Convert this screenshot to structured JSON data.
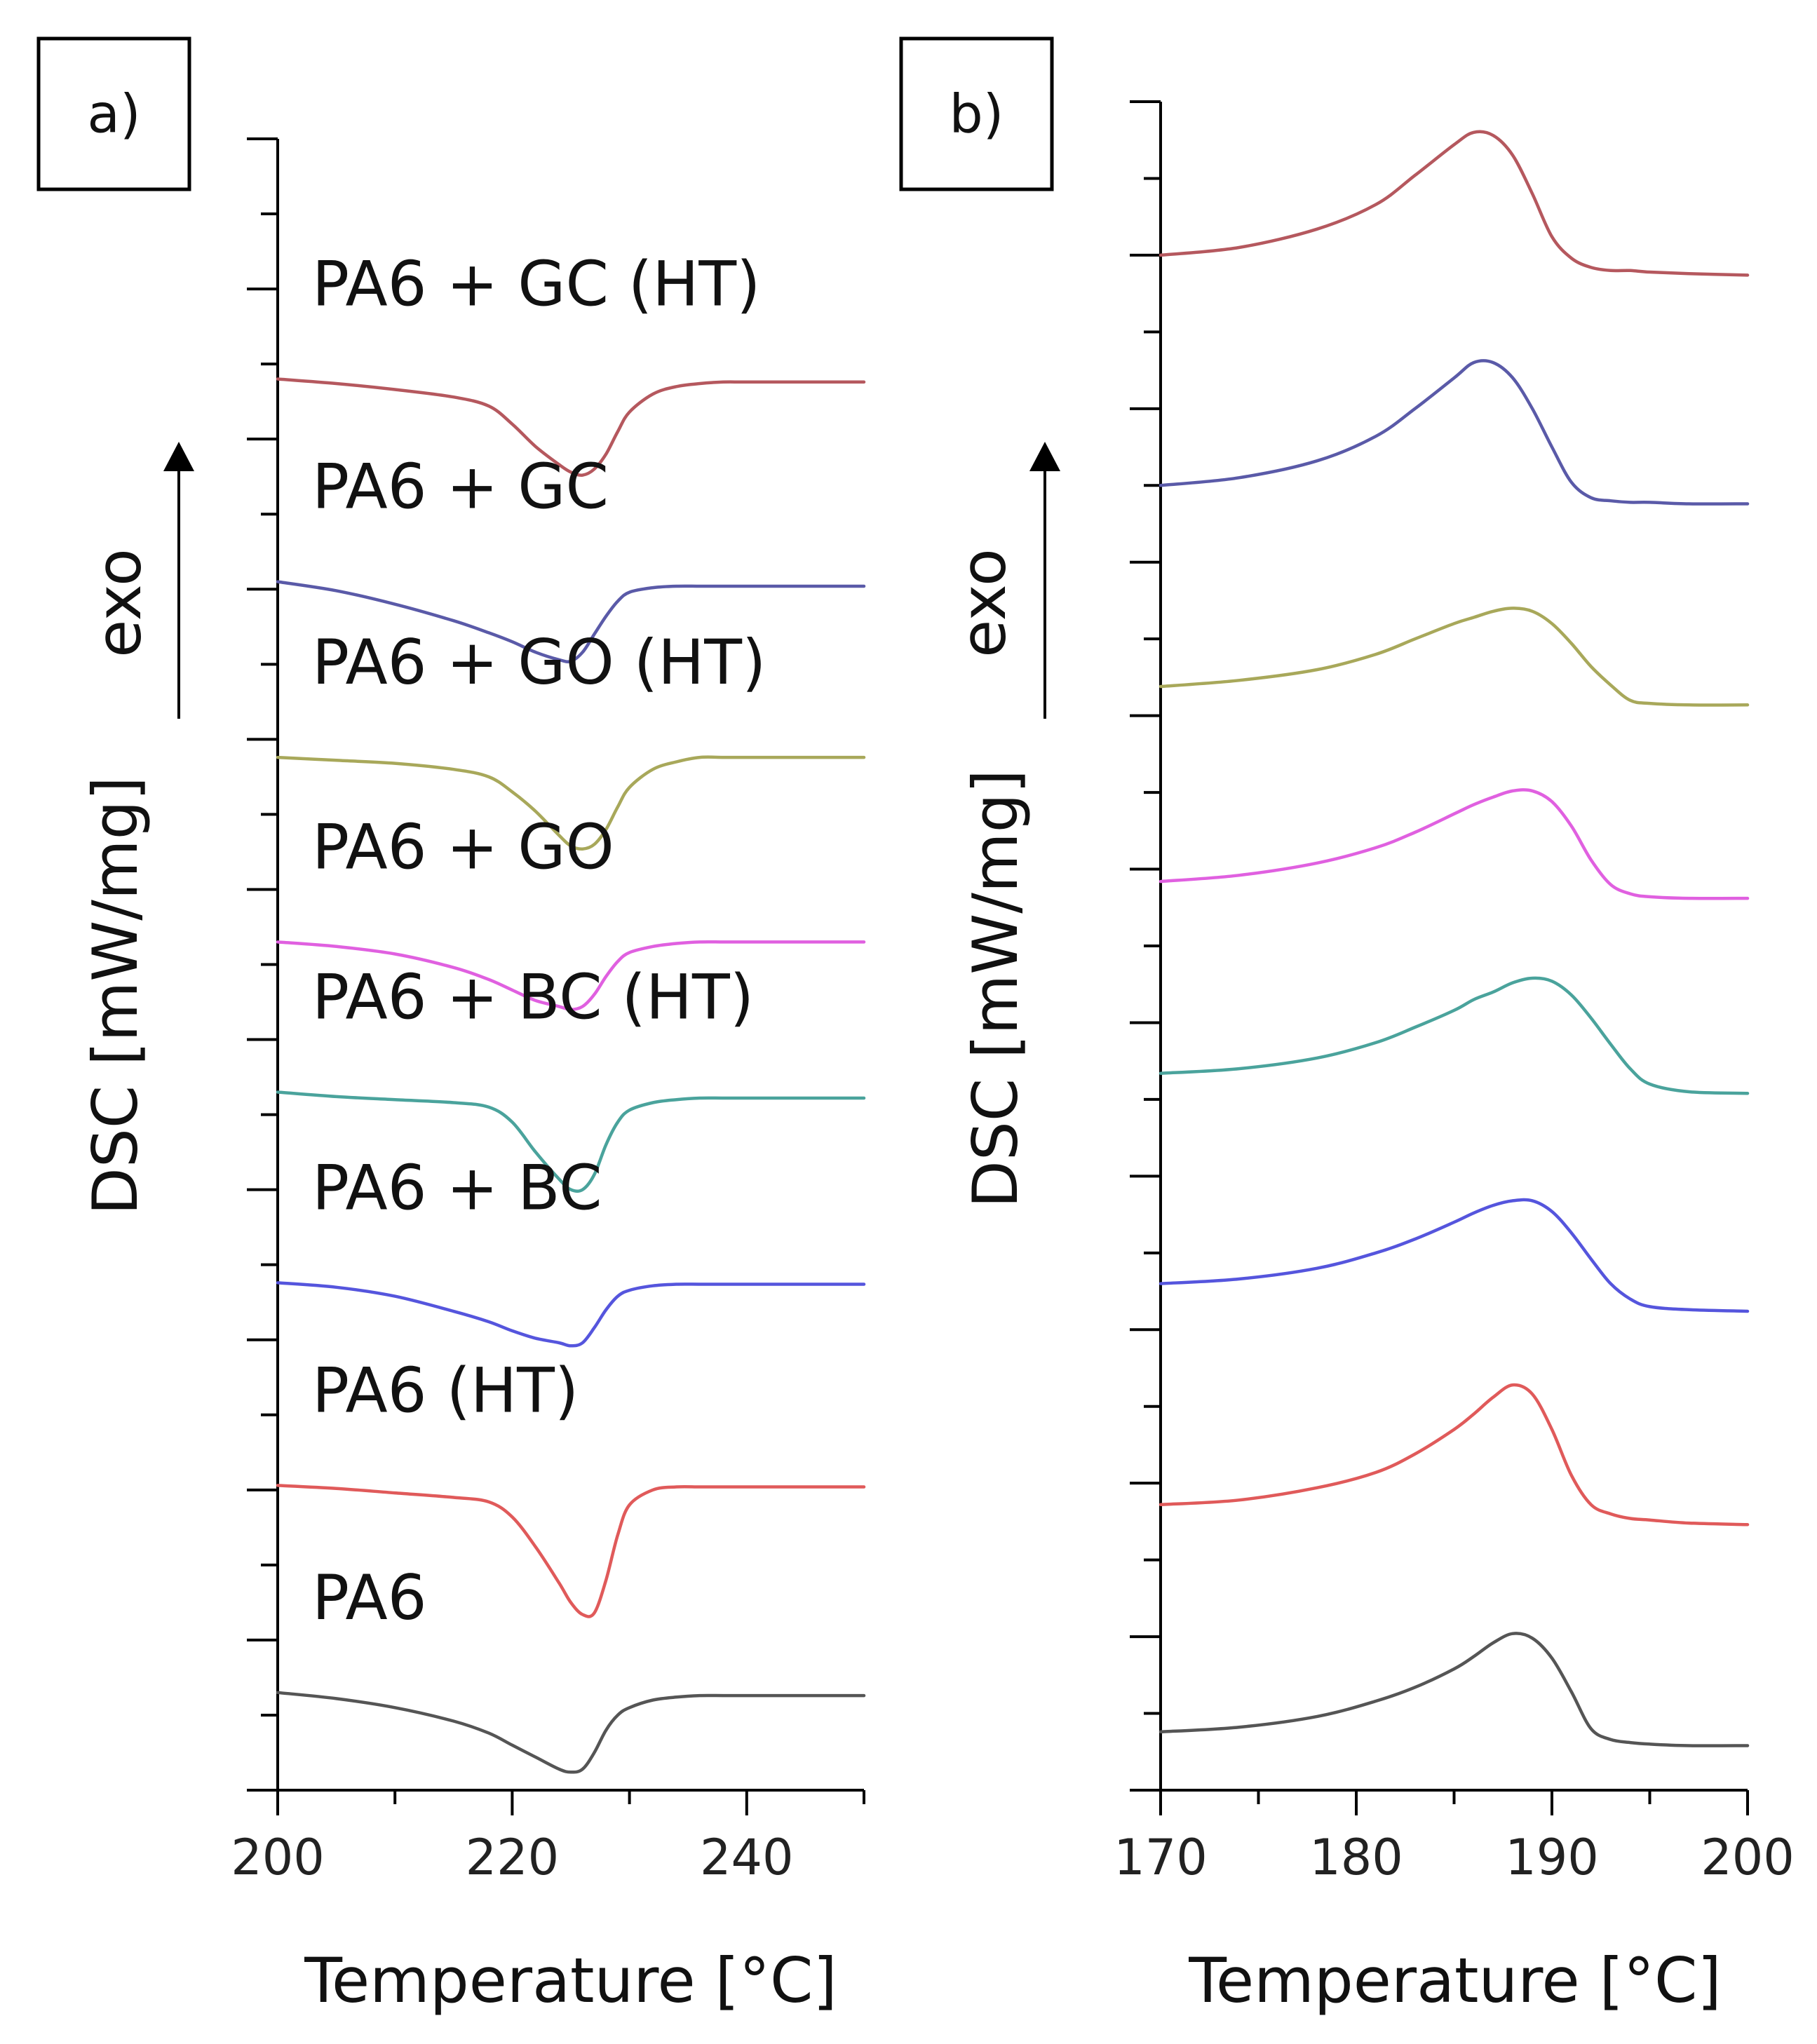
{
  "chart_data": [
    {
      "panel": "a)",
      "type": "line",
      "xlabel": "Temperature [°C]",
      "ylabel": "DSC [mW/mg]",
      "arrow_label": "exo",
      "xlim": [
        200,
        250
      ],
      "ylim": [
        0,
        11
      ],
      "xticks": [
        200,
        220,
        240
      ],
      "x": [
        200,
        205,
        210,
        215,
        218,
        220,
        222,
        224,
        225,
        226,
        227,
        228,
        229,
        230,
        232,
        234,
        236,
        238,
        240,
        245,
        250
      ],
      "series": [
        {
          "name": "PA6 + GC (HT)",
          "color": "#b5585e",
          "y": [
            9.4,
            9.37,
            9.33,
            9.28,
            9.22,
            9.1,
            8.95,
            8.83,
            8.78,
            8.76,
            8.8,
            8.9,
            9.05,
            9.18,
            9.3,
            9.35,
            9.37,
            9.38,
            9.38,
            9.38,
            9.38
          ]
        },
        {
          "name": "PA6 + GC",
          "color": "#5a5aa8",
          "y": [
            8.05,
            7.99,
            7.9,
            7.79,
            7.71,
            7.65,
            7.58,
            7.53,
            7.52,
            7.58,
            7.7,
            7.82,
            7.92,
            7.98,
            8.01,
            8.02,
            8.02,
            8.02,
            8.02,
            8.02,
            8.02
          ]
        },
        {
          "name": "PA6 + GO (HT)",
          "color": "#a8a85a",
          "y": [
            6.88,
            6.86,
            6.84,
            6.8,
            6.75,
            6.65,
            6.52,
            6.36,
            6.29,
            6.27,
            6.3,
            6.4,
            6.55,
            6.68,
            6.8,
            6.85,
            6.88,
            6.88,
            6.88,
            6.88,
            6.88
          ]
        },
        {
          "name": "PA6 + GO",
          "color": "#e060e0",
          "y": [
            5.65,
            5.62,
            5.57,
            5.48,
            5.4,
            5.33,
            5.26,
            5.22,
            5.2,
            5.22,
            5.3,
            5.42,
            5.52,
            5.58,
            5.62,
            5.64,
            5.65,
            5.65,
            5.65,
            5.65,
            5.65
          ]
        },
        {
          "name": "PA6 + BC (HT)",
          "color": "#4aa39c",
          "y": [
            4.65,
            4.62,
            4.6,
            4.58,
            4.55,
            4.45,
            4.25,
            4.07,
            4.0,
            4.0,
            4.1,
            4.3,
            4.45,
            4.53,
            4.58,
            4.6,
            4.61,
            4.61,
            4.61,
            4.61,
            4.61
          ]
        },
        {
          "name": "PA6 + BC",
          "color": "#5555dd",
          "y": [
            3.38,
            3.35,
            3.29,
            3.19,
            3.12,
            3.06,
            3.01,
            2.98,
            2.96,
            2.98,
            3.08,
            3.2,
            3.29,
            3.33,
            3.36,
            3.37,
            3.37,
            3.37,
            3.37,
            3.37,
            3.37
          ]
        },
        {
          "name": "PA6 (HT)",
          "color": "#e05a5a",
          "y": [
            2.03,
            2.01,
            1.98,
            1.95,
            1.92,
            1.82,
            1.62,
            1.38,
            1.25,
            1.17,
            1.18,
            1.4,
            1.7,
            1.9,
            2.0,
            2.02,
            2.02,
            2.02,
            2.02,
            2.02,
            2.02
          ]
        },
        {
          "name": "PA6",
          "color": "#555555",
          "y": [
            0.65,
            0.61,
            0.55,
            0.46,
            0.38,
            0.3,
            0.22,
            0.14,
            0.12,
            0.14,
            0.25,
            0.4,
            0.5,
            0.55,
            0.6,
            0.62,
            0.63,
            0.63,
            0.63,
            0.63,
            0.63
          ]
        }
      ]
    },
    {
      "panel": "b)",
      "type": "line",
      "xlabel": "Temperature [°C]",
      "ylabel": "DSC [mW/mg]",
      "arrow_label": "exo",
      "xlim": [
        170,
        200
      ],
      "ylim": [
        0,
        11
      ],
      "xticks": [
        170,
        180,
        190,
        200
      ],
      "x": [
        170,
        174,
        178,
        181,
        183,
        185,
        186,
        187,
        188,
        189,
        190,
        191,
        192,
        193,
        194,
        195,
        197,
        200
      ],
      "series": [
        {
          "name": "PA6 + GC (HT)",
          "color": "#b5585e",
          "y": [
            10.0,
            10.05,
            10.17,
            10.33,
            10.52,
            10.72,
            10.8,
            10.78,
            10.65,
            10.4,
            10.12,
            9.98,
            9.92,
            9.9,
            9.9,
            9.89,
            9.88,
            9.87
          ]
        },
        {
          "name": "PA6 + GC",
          "color": "#5a5aa8",
          "y": [
            8.5,
            8.55,
            8.66,
            8.82,
            9.0,
            9.2,
            9.3,
            9.3,
            9.2,
            9.0,
            8.75,
            8.52,
            8.42,
            8.4,
            8.39,
            8.39,
            8.38,
            8.38
          ]
        },
        {
          "name": "PA6 + GO (HT)",
          "color": "#a8a85a",
          "y": [
            7.19,
            7.23,
            7.3,
            7.4,
            7.5,
            7.6,
            7.64,
            7.68,
            7.7,
            7.68,
            7.6,
            7.47,
            7.32,
            7.2,
            7.1,
            7.08,
            7.07,
            7.07
          ]
        },
        {
          "name": "PA6 + GO",
          "color": "#e060e0",
          "y": [
            5.92,
            5.96,
            6.04,
            6.14,
            6.24,
            6.36,
            6.42,
            6.47,
            6.51,
            6.51,
            6.44,
            6.28,
            6.06,
            5.9,
            5.84,
            5.82,
            5.81,
            5.81
          ]
        },
        {
          "name": "PA6 + BC (HT)",
          "color": "#4aa39c",
          "y": [
            4.67,
            4.7,
            4.77,
            4.87,
            4.97,
            5.08,
            5.15,
            5.2,
            5.26,
            5.29,
            5.27,
            5.18,
            5.03,
            4.86,
            4.7,
            4.6,
            4.55,
            4.54
          ]
        },
        {
          "name": "PA6 + BC",
          "color": "#5555dd",
          "y": [
            3.3,
            3.33,
            3.4,
            3.5,
            3.59,
            3.7,
            3.76,
            3.81,
            3.84,
            3.84,
            3.77,
            3.63,
            3.46,
            3.3,
            3.2,
            3.15,
            3.13,
            3.12
          ]
        },
        {
          "name": "PA6 (HT)",
          "color": "#e05a5a",
          "y": [
            1.86,
            1.89,
            1.97,
            2.07,
            2.19,
            2.35,
            2.45,
            2.56,
            2.64,
            2.58,
            2.35,
            2.05,
            1.86,
            1.8,
            1.77,
            1.76,
            1.74,
            1.73
          ]
        },
        {
          "name": "PA6",
          "color": "#555555",
          "y": [
            0.38,
            0.41,
            0.48,
            0.58,
            0.67,
            0.79,
            0.87,
            0.96,
            1.02,
            0.99,
            0.86,
            0.64,
            0.4,
            0.33,
            0.31,
            0.3,
            0.29,
            0.29
          ]
        }
      ]
    }
  ]
}
